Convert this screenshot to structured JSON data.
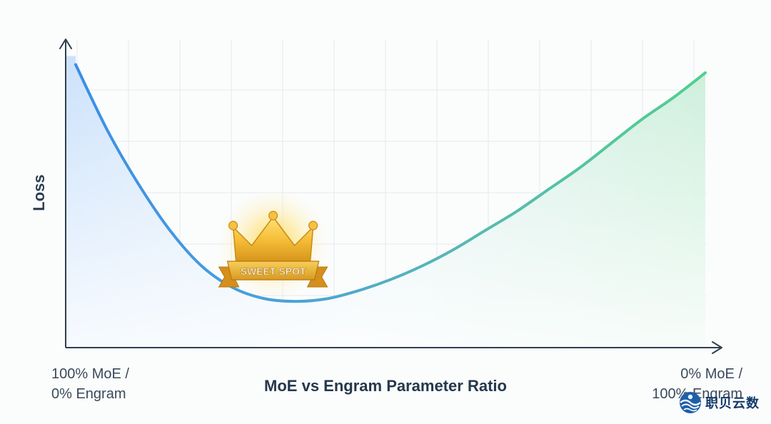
{
  "chart_data": {
    "type": "line",
    "title": "",
    "xlabel": "MoE vs Engram Parameter Ratio",
    "ylabel": "Loss",
    "x_tick_labels": [
      {
        "line1": "100% MoE /",
        "line2": "0% Engram"
      },
      {
        "line1": "0% MoE /",
        "line2": "100% Engram"
      }
    ],
    "x": [
      0,
      5,
      10,
      15,
      20,
      25,
      30,
      35,
      40,
      45,
      50,
      55,
      60,
      65,
      70,
      75,
      80,
      85,
      90,
      95,
      100
    ],
    "series": [
      {
        "values": [
          0.92,
          0.68,
          0.48,
          0.31,
          0.18,
          0.1,
          0.06,
          0.05,
          0.06,
          0.09,
          0.13,
          0.18,
          0.24,
          0.31,
          0.38,
          0.46,
          0.54,
          0.63,
          0.72,
          0.8,
          0.89
        ],
        "color_start": "#3b8ee8",
        "color_end": "#4fd08e"
      }
    ],
    "xlim": [
      0,
      100
    ],
    "ylim": [
      -0.12,
      1.0
    ],
    "grid": true,
    "annotations": [
      {
        "text": "SWEET SPOT",
        "icon": "crown-icon",
        "x": 30
      }
    ]
  },
  "watermark": {
    "text": "职贝云数",
    "icon": "globe-logo-icon"
  }
}
